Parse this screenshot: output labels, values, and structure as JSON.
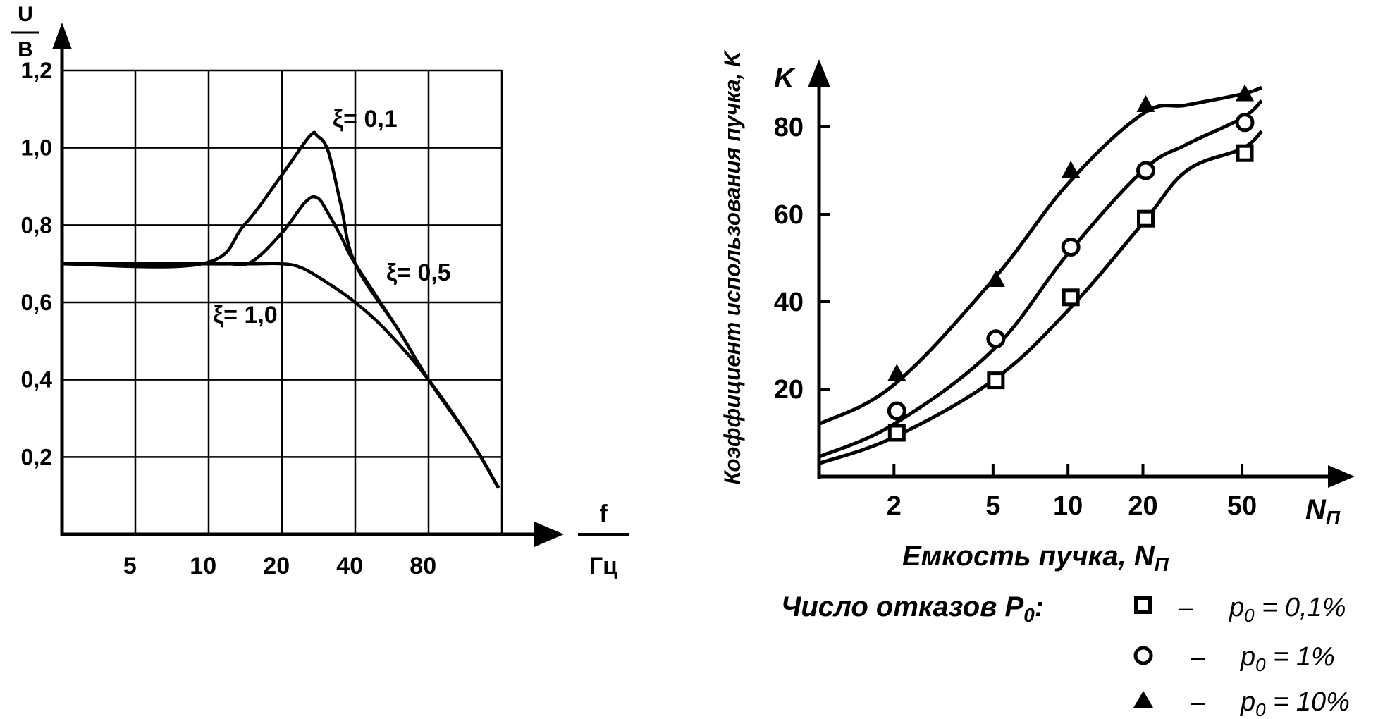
{
  "chart_data": [
    {
      "type": "line",
      "ylabel_top": "U",
      "ylabel_bottom": "B",
      "xlabel_top": "f",
      "xlabel_bottom": "Гц",
      "x_scale": "log",
      "x_ticks": [
        {
          "value": 5,
          "label": "5"
        },
        {
          "value": 10,
          "label": "10"
        },
        {
          "value": 20,
          "label": "20"
        },
        {
          "value": 40,
          "label": "40"
        },
        {
          "value": 80,
          "label": "80"
        }
      ],
      "xlim": [
        2.5,
        160
      ],
      "y_ticks": [
        {
          "value": 0.2,
          "label": "0,2"
        },
        {
          "value": 0.4,
          "label": "0,4"
        },
        {
          "value": 0.6,
          "label": "0,6"
        },
        {
          "value": 0.8,
          "label": "0,8"
        },
        {
          "value": 1.0,
          "label": "1,0"
        },
        {
          "value": 1.2,
          "label": "1,2"
        }
      ],
      "ylim": [
        0,
        1.2
      ],
      "grid": true,
      "series": [
        {
          "name": "ξ= 0,1",
          "x": [
            2.5,
            9.4,
            14,
            20,
            26,
            28,
            31,
            35,
            40,
            60,
            80,
            120,
            155
          ],
          "y": [
            0.7,
            0.7,
            0.8,
            0.93,
            1.03,
            1.03,
            0.99,
            0.85,
            0.7,
            0.53,
            0.4,
            0.24,
            0.12
          ]
        },
        {
          "name": "ξ= 0,5",
          "x": [
            2.5,
            9.4,
            12,
            15,
            20,
            25,
            28,
            31,
            35,
            40,
            60,
            80,
            120,
            155
          ],
          "y": [
            0.7,
            0.7,
            0.7,
            0.705,
            0.78,
            0.86,
            0.87,
            0.83,
            0.77,
            0.7,
            0.53,
            0.4,
            0.24,
            0.12
          ]
        },
        {
          "name": "ξ= 1,0",
          "x": [
            2.5,
            10,
            15,
            20,
            24,
            30,
            40,
            55,
            80,
            120,
            155
          ],
          "y": [
            0.7,
            0.7,
            0.7,
            0.7,
            0.69,
            0.655,
            0.6,
            0.52,
            0.4,
            0.24,
            0.12
          ]
        }
      ]
    },
    {
      "type": "line",
      "ylabel": "Коэффициент использования пучка, K",
      "ylabel_symbol": "K",
      "xlabel": "Емкость пучка, N",
      "xlabel_sub": "П",
      "xaxis_symbol": "N",
      "xaxis_symbol_sub": "П",
      "x_scale": "log",
      "x_ticks": [
        {
          "value": 2,
          "label": "2"
        },
        {
          "value": 5,
          "label": "5"
        },
        {
          "value": 10,
          "label": "10"
        },
        {
          "value": 20,
          "label": "20"
        },
        {
          "value": 50,
          "label": "50"
        }
      ],
      "xlim": [
        1,
        60
      ],
      "y_ticks": [
        {
          "value": 20,
          "label": "20"
        },
        {
          "value": 40,
          "label": "40"
        },
        {
          "value": 60,
          "label": "60"
        },
        {
          "value": 80,
          "label": "80"
        }
      ],
      "ylim": [
        0,
        90
      ],
      "grid": false,
      "series": [
        {
          "name": "p0 = 0,1%",
          "marker": "square",
          "points_x": [
            2,
            5,
            10,
            20,
            50
          ],
          "points_y": [
            10,
            22,
            41,
            59,
            74
          ],
          "curve_x": [
            1,
            2,
            5,
            10,
            20,
            30,
            50,
            60
          ],
          "curve_y": [
            3,
            9,
            22,
            38,
            58,
            70,
            75,
            79
          ]
        },
        {
          "name": "p0 = 1%",
          "marker": "circle",
          "points_x": [
            2,
            5,
            10,
            20,
            50
          ],
          "points_y": [
            15,
            31.5,
            52.5,
            70,
            81
          ],
          "curve_x": [
            1,
            2,
            5,
            10,
            20,
            30,
            50,
            60
          ],
          "curve_y": [
            4.5,
            12,
            29,
            51,
            70,
            76,
            82,
            86
          ]
        },
        {
          "name": "p0 = 10%",
          "marker": "triangle",
          "points_x": [
            2,
            5,
            10,
            20,
            50
          ],
          "points_y": [
            23.5,
            45,
            70,
            85,
            87.5
          ],
          "curve_x": [
            1,
            2,
            5,
            10,
            20,
            30,
            50,
            60
          ],
          "curve_y": [
            12,
            21,
            45,
            67,
            83,
            85,
            87.5,
            89
          ]
        }
      ],
      "legend_title": "Число отказов P",
      "legend_title_sub": "0",
      "legend_title_end": ":",
      "legend_dash": "–",
      "legend": [
        {
          "marker": "square",
          "prefix": "p",
          "sub": "0",
          "text": " = 0,1%"
        },
        {
          "marker": "circle",
          "prefix": "p",
          "sub": "0",
          "text": " = 1%"
        },
        {
          "marker": "triangle",
          "prefix": "p",
          "sub": "0",
          "text": " = 10%"
        }
      ]
    }
  ]
}
